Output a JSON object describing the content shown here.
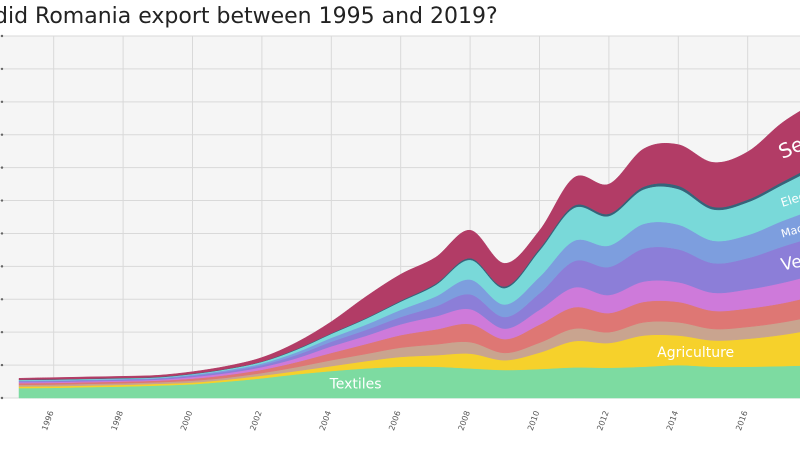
{
  "title": "did Romania export between 1995 and 2019?",
  "chart_data": {
    "type": "area",
    "stacked": true,
    "x": [
      1995,
      1996,
      1997,
      1998,
      1999,
      2000,
      2001,
      2002,
      2003,
      2004,
      2005,
      2006,
      2007,
      2008,
      2009,
      2010,
      2011,
      2012,
      2013,
      2014,
      2015,
      2016,
      2017,
      2018
    ],
    "x_ticks": [
      "1996",
      "1998",
      "2000",
      "2002",
      "2004",
      "2006",
      "2008",
      "2010",
      "2012",
      "2014",
      "2016"
    ],
    "ylim": [
      0,
      11
    ],
    "grid": true,
    "series": [
      {
        "name": "Textiles",
        "color": "#7ddba1",
        "values": [
          0.3,
          0.31,
          0.33,
          0.35,
          0.38,
          0.42,
          0.5,
          0.6,
          0.72,
          0.82,
          0.9,
          0.95,
          0.95,
          0.9,
          0.85,
          0.88,
          0.93,
          0.92,
          0.95,
          1.0,
          0.95,
          0.95,
          0.97,
          1.0
        ]
      },
      {
        "name": "Agriculture",
        "color": "#f6d12b",
        "values": [
          0.05,
          0.05,
          0.05,
          0.05,
          0.05,
          0.05,
          0.06,
          0.08,
          0.1,
          0.15,
          0.22,
          0.3,
          0.35,
          0.45,
          0.3,
          0.5,
          0.8,
          0.75,
          0.95,
          0.9,
          0.8,
          0.85,
          0.95,
          1.1
        ]
      },
      {
        "name": "",
        "color": "#c9a48f",
        "values": [
          0.05,
          0.05,
          0.05,
          0.05,
          0.05,
          0.06,
          0.06,
          0.08,
          0.12,
          0.18,
          0.22,
          0.28,
          0.33,
          0.35,
          0.22,
          0.3,
          0.38,
          0.33,
          0.4,
          0.4,
          0.35,
          0.36,
          0.38,
          0.4
        ]
      },
      {
        "name": "",
        "color": "#de7774",
        "values": [
          0.05,
          0.05,
          0.05,
          0.05,
          0.05,
          0.06,
          0.08,
          0.1,
          0.15,
          0.22,
          0.3,
          0.38,
          0.45,
          0.55,
          0.42,
          0.55,
          0.65,
          0.58,
          0.62,
          0.62,
          0.55,
          0.56,
          0.58,
          0.62
        ]
      },
      {
        "name": "",
        "color": "#ce7ada",
        "values": [
          0.03,
          0.03,
          0.03,
          0.03,
          0.03,
          0.05,
          0.06,
          0.08,
          0.12,
          0.2,
          0.25,
          0.33,
          0.4,
          0.45,
          0.32,
          0.45,
          0.6,
          0.55,
          0.62,
          0.6,
          0.55,
          0.58,
          0.62,
          0.65
        ]
      },
      {
        "name": "Vehicles",
        "color": "#8c7ed8",
        "values": [
          0.03,
          0.03,
          0.03,
          0.03,
          0.03,
          0.04,
          0.05,
          0.06,
          0.1,
          0.14,
          0.18,
          0.22,
          0.3,
          0.45,
          0.35,
          0.5,
          0.8,
          0.85,
          1.0,
          1.0,
          0.9,
          0.95,
          1.1,
          1.15
        ]
      },
      {
        "name": "Machinery",
        "color": "#7d9ede",
        "values": [
          0.02,
          0.02,
          0.02,
          0.02,
          0.02,
          0.03,
          0.04,
          0.05,
          0.08,
          0.12,
          0.16,
          0.22,
          0.3,
          0.45,
          0.38,
          0.5,
          0.62,
          0.65,
          0.75,
          0.75,
          0.68,
          0.7,
          0.78,
          0.85
        ]
      },
      {
        "name": "Electronics",
        "color": "#79d9d9",
        "values": [
          0.02,
          0.02,
          0.02,
          0.02,
          0.02,
          0.02,
          0.03,
          0.05,
          0.08,
          0.12,
          0.18,
          0.25,
          0.35,
          0.6,
          0.5,
          0.8,
          1.0,
          0.9,
          1.05,
          1.08,
          0.95,
          1.0,
          1.1,
          1.25
        ]
      },
      {
        "name": "",
        "color": "#35647a",
        "values": [
          0.01,
          0.01,
          0.01,
          0.01,
          0.01,
          0.01,
          0.01,
          0.01,
          0.02,
          0.02,
          0.02,
          0.03,
          0.04,
          0.05,
          0.05,
          0.06,
          0.07,
          0.07,
          0.08,
          0.1,
          0.08,
          0.08,
          0.09,
          0.1
        ]
      },
      {
        "name": "Services",
        "color": "#b23c66",
        "values": [
          0.04,
          0.05,
          0.05,
          0.05,
          0.05,
          0.06,
          0.08,
          0.12,
          0.2,
          0.35,
          0.65,
          0.8,
          0.8,
          0.85,
          0.7,
          0.55,
          0.85,
          0.9,
          1.15,
          1.25,
          1.35,
          1.45,
          1.8,
          1.9
        ]
      }
    ]
  }
}
